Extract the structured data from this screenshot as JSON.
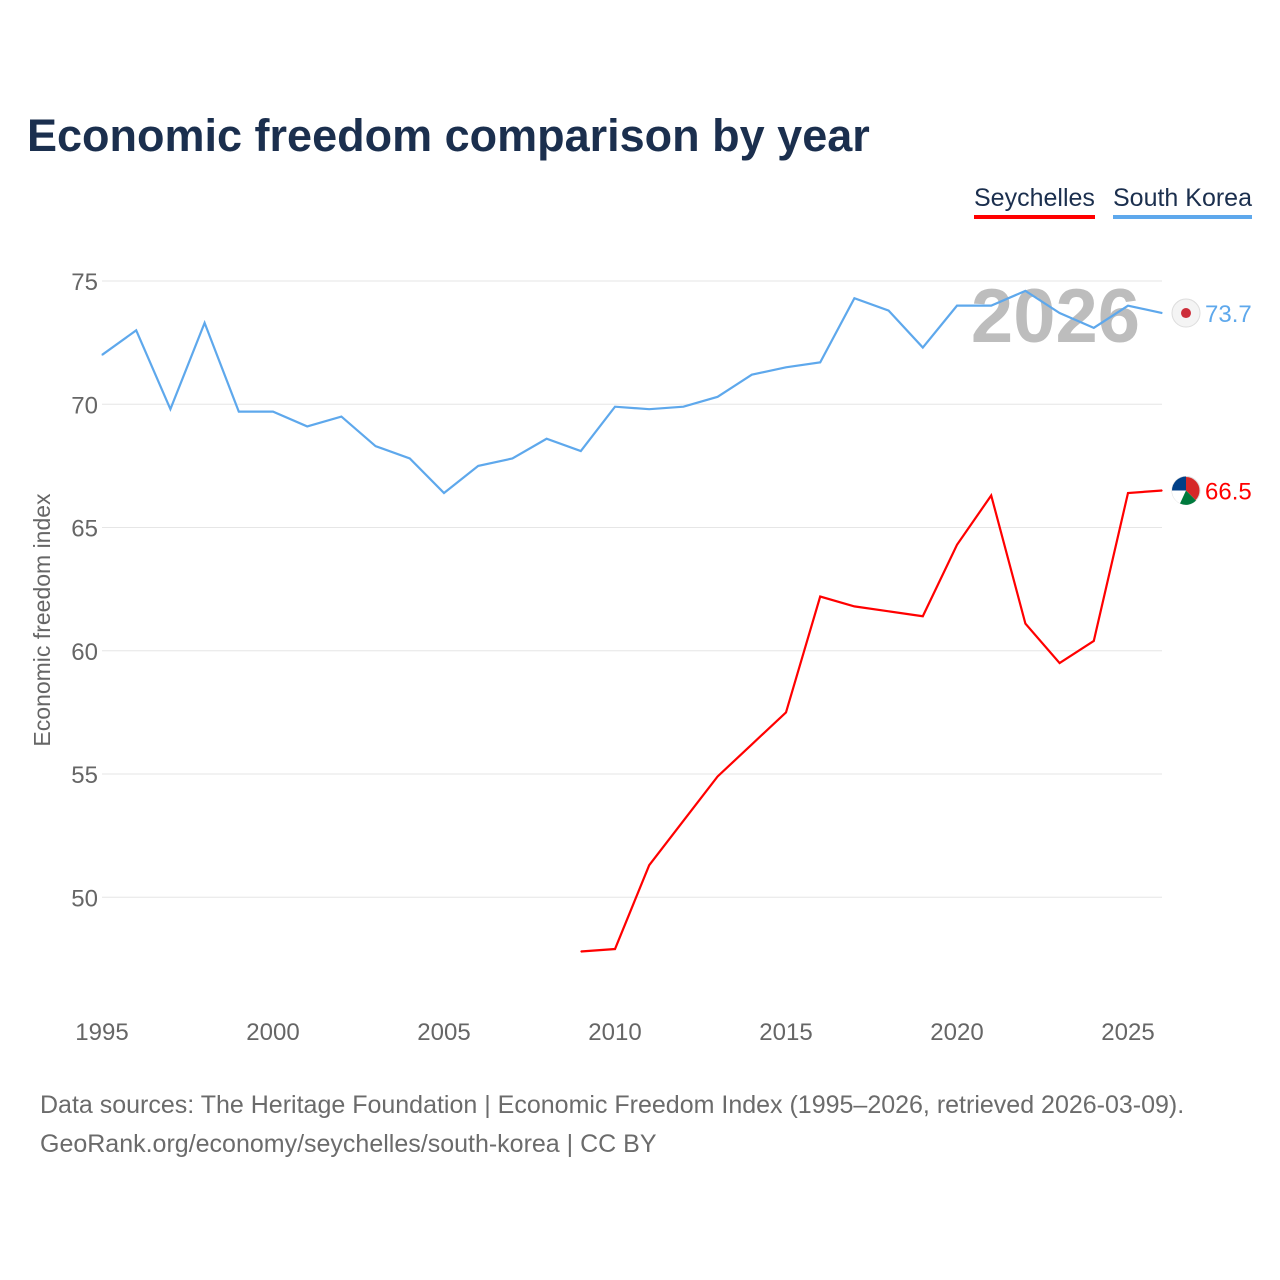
{
  "title": "Economic freedom comparison by year",
  "legend": [
    "Seychelles",
    "South Korea"
  ],
  "source_line1": "Data sources: The Heritage Foundation | Economic Freedom Index (1995–2026, retrieved 2026-03-09).",
  "source_line2": "GeoRank.org/economy/seychelles/south-korea | CC BY",
  "chart_data": {
    "type": "line",
    "title": "Economic freedom comparison by year",
    "xlabel": "",
    "ylabel": "Economic freedom index",
    "xlim": [
      1995,
      2026
    ],
    "ylim": [
      45.5,
      75
    ],
    "xticks": [
      1995,
      2000,
      2005,
      2010,
      2015,
      2020,
      2025
    ],
    "yticks": [
      50,
      55,
      60,
      65,
      70,
      75
    ],
    "grid": true,
    "legend_position": "top-right",
    "year_watermark": "2026",
    "series": [
      {
        "name": "Seychelles",
        "color": "#ff0000",
        "end_label": "66.5",
        "x": [
          2009,
          2010,
          2011,
          2012,
          2013,
          2014,
          2015,
          2016,
          2017,
          2018,
          2019,
          2020,
          2021,
          2022,
          2023,
          2024,
          2025,
          2026
        ],
        "values": [
          47.8,
          47.9,
          51.3,
          53.1,
          54.9,
          56.2,
          57.5,
          62.2,
          61.8,
          61.6,
          61.4,
          64.3,
          66.3,
          61.1,
          59.5,
          60.4,
          66.4,
          66.5
        ]
      },
      {
        "name": "South Korea",
        "color": "#5ea8ec",
        "end_label": "73.7",
        "x": [
          1995,
          1996,
          1997,
          1998,
          1999,
          2000,
          2001,
          2002,
          2003,
          2004,
          2005,
          2006,
          2007,
          2008,
          2009,
          2010,
          2011,
          2012,
          2013,
          2014,
          2015,
          2016,
          2017,
          2018,
          2019,
          2020,
          2021,
          2022,
          2023,
          2024,
          2025,
          2026
        ],
        "values": [
          72.0,
          73.0,
          69.8,
          73.3,
          69.7,
          69.7,
          69.1,
          69.5,
          68.3,
          67.8,
          66.4,
          67.5,
          67.8,
          68.6,
          68.1,
          69.9,
          69.8,
          69.9,
          70.3,
          71.2,
          71.5,
          71.7,
          74.3,
          73.8,
          72.3,
          74.0,
          74.0,
          74.6,
          73.7,
          73.1,
          74.0,
          73.7
        ]
      }
    ]
  }
}
